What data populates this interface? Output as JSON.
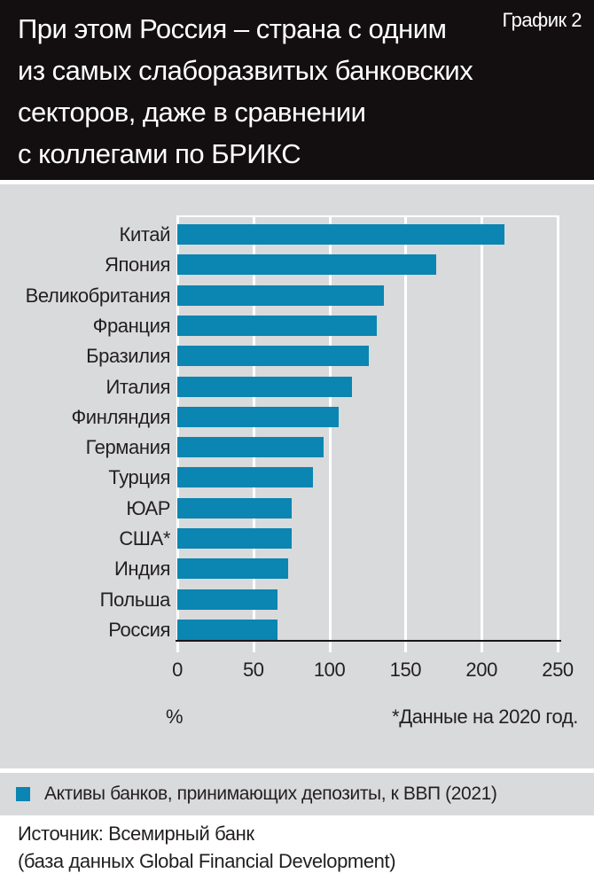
{
  "header": {
    "badge": "График 2",
    "title_lines": [
      "При этом Россия – страна с одним",
      "из самых слаборазвитых банковских",
      "секторов, даже в сравнении",
      "с коллегами по БРИКС"
    ]
  },
  "chart_data": {
    "type": "bar",
    "orientation": "horizontal",
    "categories": [
      "Китай",
      "Япония",
      "Великобритания",
      "Франция",
      "Бразилия",
      "Италия",
      "Финляндия",
      "Германия",
      "Турция",
      "ЮАР",
      "США*",
      "Индия",
      "Польша",
      "Россия"
    ],
    "values": [
      215,
      170,
      136,
      131,
      126,
      115,
      106,
      96,
      89,
      75,
      75,
      73,
      66,
      66
    ],
    "xlim": [
      0,
      250
    ],
    "xticks": [
      0,
      50,
      100,
      150,
      200,
      250
    ],
    "xlabel": "%",
    "footnote": "*Данные на 2020 год.",
    "grid": true,
    "bar_color": "#0b85b1",
    "panel_color": "#d9dadb",
    "legend": [
      {
        "label": "Активы банков, принимающих депозиты, к ВВП (2021)",
        "color": "#0b85b1"
      }
    ],
    "legend_position": "bottom"
  },
  "source": {
    "lines": [
      "Источник: Всемирный банк",
      "(база данных Global Financial Development)"
    ]
  }
}
